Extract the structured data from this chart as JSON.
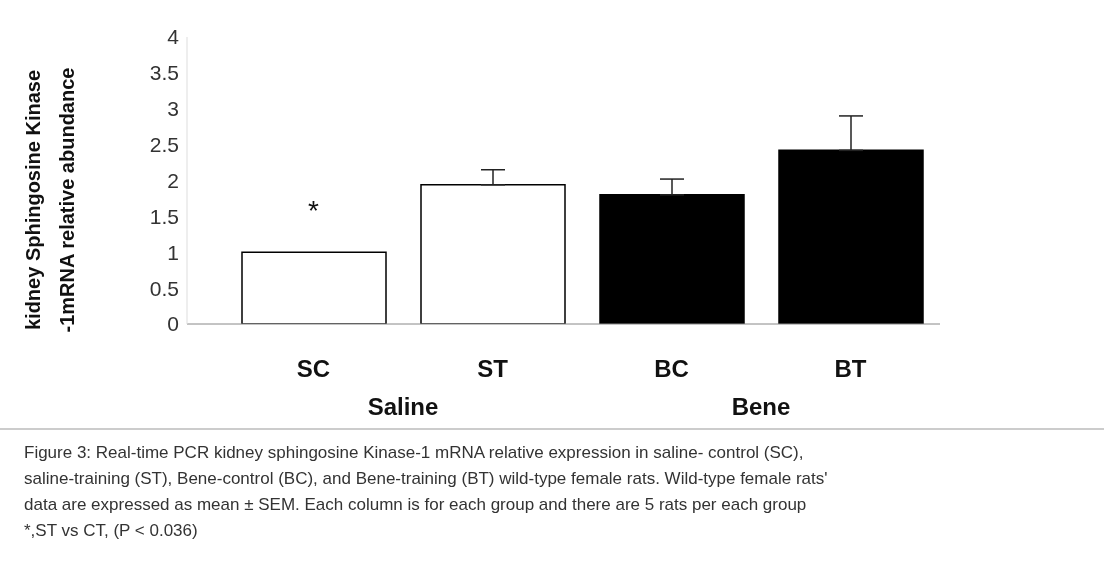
{
  "chart_data": {
    "type": "bar",
    "ylabel": "kidney  Sphingosine Kinase -1mRNA relative abundance",
    "categories": [
      "SC",
      "ST",
      "BC",
      "BT"
    ],
    "values": [
      1.0,
      1.94,
      1.8,
      2.42
    ],
    "colors": [
      "#ffffff",
      "#ffffff",
      "#000000",
      "#000000"
    ],
    "errors": [
      null,
      0.21,
      0.22,
      0.48
    ],
    "ylim": [
      0,
      4
    ],
    "yticks": [
      0,
      0.5,
      1,
      1.5,
      2,
      2.5,
      3,
      3.5,
      4
    ],
    "grid": false,
    "annotations": [
      "*",
      "Saline",
      "Bene",
      "Figure 3: Real-time  PCR kidney sphingosine Kinase-1 mRNA relative expression in saline- control (SC),",
      "saline-training (ST), Bene-control (BC), and Bene-training (BT) wild-type female rats. Wild-type female rats'",
      "data are expressed as mean ± SEM. Each column is for each group and there are 5 rats per each group",
      "*,ST vs CT, (P < 0.036)"
    ]
  }
}
